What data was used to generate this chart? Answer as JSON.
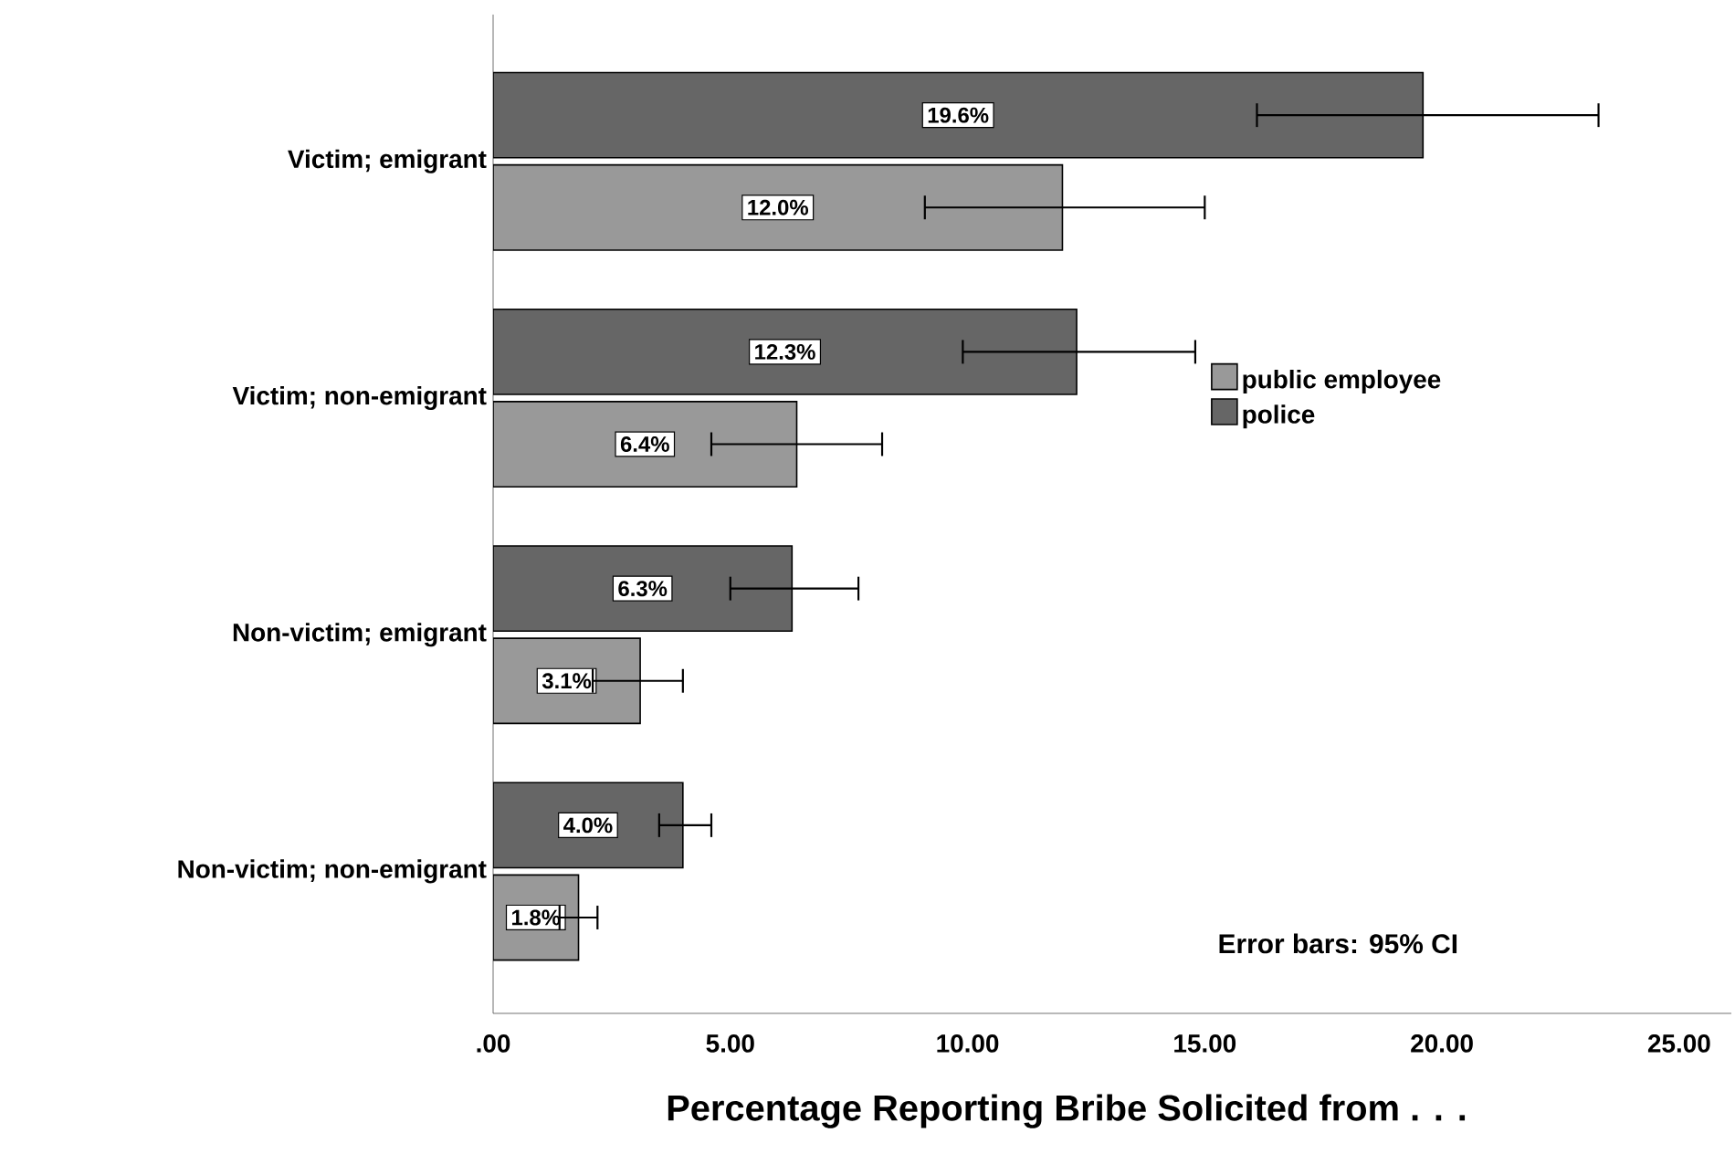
{
  "chart_data": {
    "type": "bar",
    "orientation": "horizontal",
    "categories": [
      "Victim; emigrant",
      "Victim; non-emigrant",
      "Non-victim; emigrant",
      "Non-victim; non-emigrant"
    ],
    "series": [
      {
        "name": "public employee",
        "color": "#999999",
        "values": [
          12.0,
          6.4,
          3.1,
          1.8
        ],
        "errors": [
          [
            9.1,
            15.0
          ],
          [
            4.6,
            8.2
          ],
          [
            2.1,
            4.0
          ],
          [
            1.4,
            2.2
          ]
        ],
        "value_labels": [
          "12.0%",
          "6.4%",
          "3.1%",
          "1.8%"
        ]
      },
      {
        "name": "police",
        "color": "#666666",
        "values": [
          19.6,
          12.3,
          6.3,
          4.0
        ],
        "errors": [
          [
            16.1,
            23.3
          ],
          [
            9.9,
            14.8
          ],
          [
            5.0,
            7.7
          ],
          [
            3.5,
            4.6
          ]
        ],
        "value_labels": [
          "19.6%",
          "12.3%",
          "6.3%",
          "4.0%"
        ]
      }
    ],
    "xlabel": "Percentage Reporting Bribe Solicited from . . .",
    "xlim": [
      0,
      26.1
    ],
    "xticks": [
      {
        "value": 0,
        "label": ".00"
      },
      {
        "value": 5,
        "label": "5.00"
      },
      {
        "value": 10,
        "label": "10.00"
      },
      {
        "value": 15,
        "label": "15.00"
      },
      {
        "value": 20,
        "label": "20.00"
      },
      {
        "value": 25,
        "label": "25.00"
      }
    ],
    "legend": "right",
    "annotations": [
      "Error bars: 95% CI"
    ]
  }
}
